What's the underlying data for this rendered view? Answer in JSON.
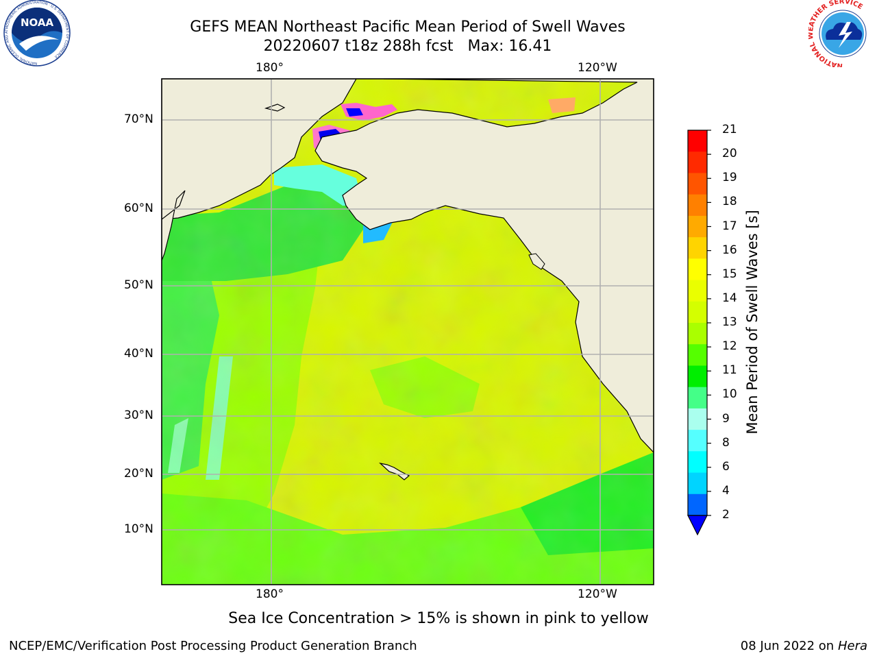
{
  "title": {
    "line1": "GEFS MEAN Northeast Pacific Mean Period of Swell Waves",
    "line2": "20220607 t18z 288h fcst",
    "max_label": "Max: 16.41"
  },
  "map": {
    "top_lon_labels": [
      "180°",
      "120°W"
    ],
    "bottom_lon_labels": [
      "180°",
      "120°W"
    ],
    "lat_labels": [
      "70°N",
      "60°N",
      "50°N",
      "40°N",
      "30°N",
      "20°N",
      "10°N"
    ],
    "land_color": "#efedda",
    "ocean_base_color": "#d7f400",
    "grid_color": "#b0b0b0"
  },
  "colorbar": {
    "label": "Mean Period of Swell Waves [s]",
    "ticks": [
      "21",
      "20",
      "19",
      "18",
      "17",
      "16",
      "15",
      "14",
      "13",
      "12",
      "11",
      "10",
      "9",
      "8",
      "6",
      "4",
      "2"
    ],
    "colors_top_to_bottom": [
      "#ff0000",
      "#ff2a00",
      "#ff5500",
      "#ff8000",
      "#ffaa00",
      "#ffd400",
      "#ffff00",
      "#eaff00",
      "#d4ff00",
      "#aaff00",
      "#55ff00",
      "#00ee00",
      "#44ff88",
      "#aaffee",
      "#55ffff",
      "#00ffff",
      "#00d4ff",
      "#0066ff"
    ],
    "under_color": "#0000ff"
  },
  "note": "Sea Ice Concentration > 15% is shown in pink to yellow",
  "footer": {
    "org": "NCEP/EMC/Verification Post Processing Product Generation Branch",
    "date": "08 Jun 2022 on",
    "host": "Hera"
  },
  "logos": {
    "noaa": "NOAA",
    "noaa_ring": "NATIONAL OCEANIC AND ATMOSPHERIC ADMINISTRATION · U.S. DEPARTMENT OF COMMERCE",
    "nws_ring": "NATIONAL WEATHER SERVICE"
  }
}
